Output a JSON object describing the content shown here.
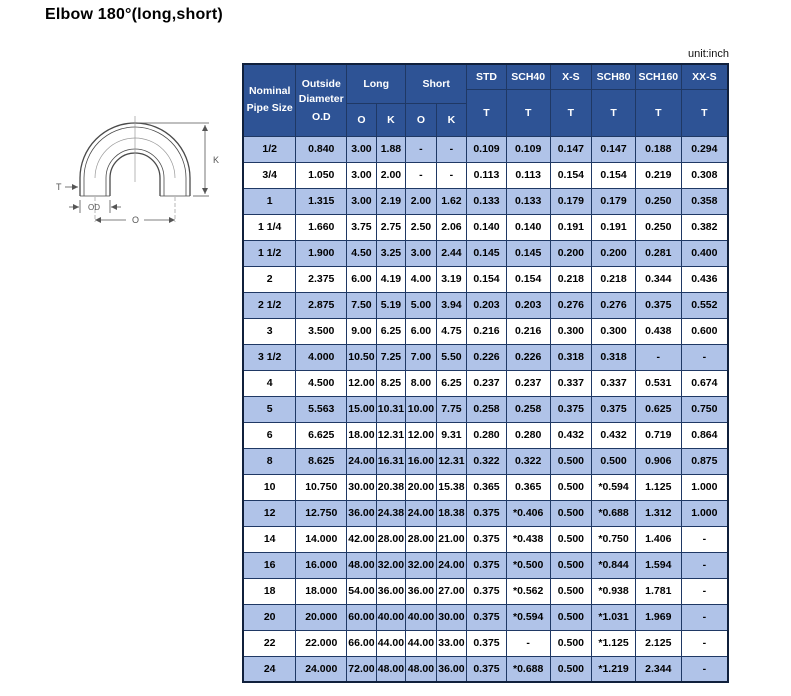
{
  "page": {
    "title": "Elbow 180°(long,short)",
    "unit_label": "unit:inch"
  },
  "colors": {
    "header_bg": "#2E5395",
    "stripe": "#B0C3E8",
    "border": "#1F3864",
    "header_text": "#FFFFFF",
    "data_text": "#000000"
  },
  "diagram": {
    "description": "180-degree return elbow outline drawing",
    "labels": {
      "t": "T",
      "od": "OD",
      "o": "O",
      "k": "K"
    }
  },
  "table": {
    "header": {
      "nominal": "Nominal Pipe Size",
      "outside_diameter": "Outside Diameter",
      "od_sub": "O.D",
      "long": "Long",
      "short": "Short",
      "o": "O",
      "k": "K",
      "t": "T",
      "schedule_cols": [
        "STD",
        "SCH40",
        "X-S",
        "SCH80",
        "SCH160",
        "XX-S"
      ]
    },
    "rows": [
      [
        "1/2",
        "0.840",
        "3.00",
        "1.88",
        "-",
        "-",
        "0.109",
        "0.109",
        "0.147",
        "0.147",
        "0.188",
        "0.294"
      ],
      [
        "3/4",
        "1.050",
        "3.00",
        "2.00",
        "-",
        "-",
        "0.113",
        "0.113",
        "0.154",
        "0.154",
        "0.219",
        "0.308"
      ],
      [
        "1",
        "1.315",
        "3.00",
        "2.19",
        "2.00",
        "1.62",
        "0.133",
        "0.133",
        "0.179",
        "0.179",
        "0.250",
        "0.358"
      ],
      [
        "1 1/4",
        "1.660",
        "3.75",
        "2.75",
        "2.50",
        "2.06",
        "0.140",
        "0.140",
        "0.191",
        "0.191",
        "0.250",
        "0.382"
      ],
      [
        "1 1/2",
        "1.900",
        "4.50",
        "3.25",
        "3.00",
        "2.44",
        "0.145",
        "0.145",
        "0.200",
        "0.200",
        "0.281",
        "0.400"
      ],
      [
        "2",
        "2.375",
        "6.00",
        "4.19",
        "4.00",
        "3.19",
        "0.154",
        "0.154",
        "0.218",
        "0.218",
        "0.344",
        "0.436"
      ],
      [
        "2 1/2",
        "2.875",
        "7.50",
        "5.19",
        "5.00",
        "3.94",
        "0.203",
        "0.203",
        "0.276",
        "0.276",
        "0.375",
        "0.552"
      ],
      [
        "3",
        "3.500",
        "9.00",
        "6.25",
        "6.00",
        "4.75",
        "0.216",
        "0.216",
        "0.300",
        "0.300",
        "0.438",
        "0.600"
      ],
      [
        "3 1/2",
        "4.000",
        "10.50",
        "7.25",
        "7.00",
        "5.50",
        "0.226",
        "0.226",
        "0.318",
        "0.318",
        "-",
        "-"
      ],
      [
        "4",
        "4.500",
        "12.00",
        "8.25",
        "8.00",
        "6.25",
        "0.237",
        "0.237",
        "0.337",
        "0.337",
        "0.531",
        "0.674"
      ],
      [
        "5",
        "5.563",
        "15.00",
        "10.31",
        "10.00",
        "7.75",
        "0.258",
        "0.258",
        "0.375",
        "0.375",
        "0.625",
        "0.750"
      ],
      [
        "6",
        "6.625",
        "18.00",
        "12.31",
        "12.00",
        "9.31",
        "0.280",
        "0.280",
        "0.432",
        "0.432",
        "0.719",
        "0.864"
      ],
      [
        "8",
        "8.625",
        "24.00",
        "16.31",
        "16.00",
        "12.31",
        "0.322",
        "0.322",
        "0.500",
        "0.500",
        "0.906",
        "0.875"
      ],
      [
        "10",
        "10.750",
        "30.00",
        "20.38",
        "20.00",
        "15.38",
        "0.365",
        "0.365",
        "0.500",
        "*0.594",
        "1.125",
        "1.000"
      ],
      [
        "12",
        "12.750",
        "36.00",
        "24.38",
        "24.00",
        "18.38",
        "0.375",
        "*0.406",
        "0.500",
        "*0.688",
        "1.312",
        "1.000"
      ],
      [
        "14",
        "14.000",
        "42.00",
        "28.00",
        "28.00",
        "21.00",
        "0.375",
        "*0.438",
        "0.500",
        "*0.750",
        "1.406",
        "-"
      ],
      [
        "16",
        "16.000",
        "48.00",
        "32.00",
        "32.00",
        "24.00",
        "0.375",
        "*0.500",
        "0.500",
        "*0.844",
        "1.594",
        "-"
      ],
      [
        "18",
        "18.000",
        "54.00",
        "36.00",
        "36.00",
        "27.00",
        "0.375",
        "*0.562",
        "0.500",
        "*0.938",
        "1.781",
        "-"
      ],
      [
        "20",
        "20.000",
        "60.00",
        "40.00",
        "40.00",
        "30.00",
        "0.375",
        "*0.594",
        "0.500",
        "*1.031",
        "1.969",
        "-"
      ],
      [
        "22",
        "22.000",
        "66.00",
        "44.00",
        "44.00",
        "33.00",
        "0.375",
        "-",
        "0.500",
        "*1.125",
        "2.125",
        "-"
      ],
      [
        "24",
        "24.000",
        "72.00",
        "48.00",
        "48.00",
        "36.00",
        "0.375",
        "*0.688",
        "0.500",
        "*1.219",
        "2.344",
        "-"
      ]
    ]
  }
}
